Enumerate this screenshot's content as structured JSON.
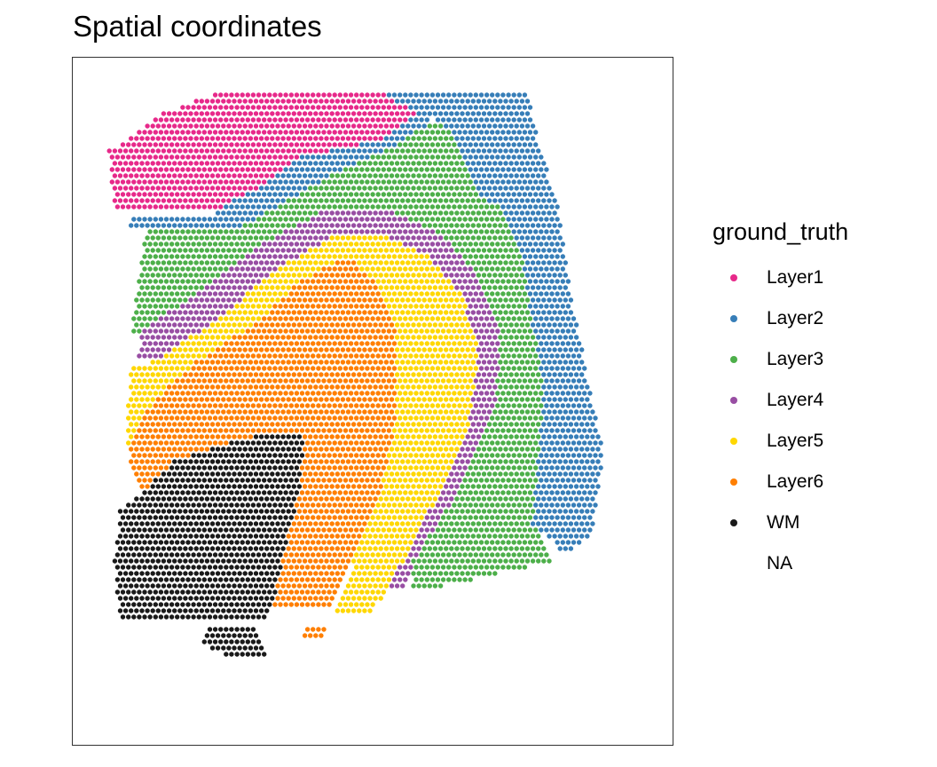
{
  "title": "Spatial coordinates",
  "legend": {
    "title": "ground_truth",
    "entries": [
      {
        "label": "Layer1",
        "color": "#E7298A"
      },
      {
        "label": "Layer2",
        "color": "#377EB8"
      },
      {
        "label": "Layer3",
        "color": "#4DAF4A"
      },
      {
        "label": "Layer4",
        "color": "#984EA3"
      },
      {
        "label": "Layer5",
        "color": "#FFD700"
      },
      {
        "label": "Layer6",
        "color": "#FF7F00"
      },
      {
        "label": "WM",
        "color": "#1A1A1A"
      },
      {
        "label": "NA",
        "color": ""
      }
    ]
  },
  "chart_data": {
    "type": "scatter",
    "title": "Spatial coordinates",
    "xlabel": "",
    "ylabel": "",
    "axes_visible": false,
    "grid": false,
    "legend_position": "right",
    "color_by": "ground_truth",
    "categories": [
      "Layer1",
      "Layer2",
      "Layer3",
      "Layer4",
      "Layer5",
      "Layer6",
      "WM",
      "NA"
    ],
    "note_on_points": "Spots lie on a hexagonal grid. Each region is listed as polygons in spot grid units (x = column index, y = row index, row 0 at top); every grid spot inside a polygon belongs to that category.",
    "regions": {
      "Layer1": [
        [
          [
            21,
            1
          ],
          [
            53,
            1
          ],
          [
            59,
            4
          ],
          [
            53,
            8
          ],
          [
            37,
            11
          ],
          [
            30,
            16
          ],
          [
            25,
            18
          ],
          [
            22,
            20
          ],
          [
            3,
            20
          ],
          [
            2,
            10
          ],
          [
            12,
            4
          ]
        ],
        [
          [
            59,
            1
          ],
          [
            70,
            5
          ],
          [
            75,
            13
          ],
          [
            74,
            18
          ],
          [
            70,
            17
          ],
          [
            66,
            8
          ],
          [
            62,
            5
          ]
        ],
        [
          [
            82,
            13
          ],
          [
            85,
            19
          ],
          [
            83,
            19
          ],
          [
            80,
            16
          ]
        ]
      ],
      "Layer2": [
        [
          [
            53,
            1
          ],
          [
            79,
            1
          ],
          [
            81,
            8
          ],
          [
            85,
            20
          ],
          [
            87,
            33
          ],
          [
            90,
            46
          ],
          [
            93,
            59
          ],
          [
            91,
            72
          ],
          [
            86,
            75
          ],
          [
            80,
            70
          ],
          [
            81,
            60
          ],
          [
            82,
            48
          ],
          [
            80,
            38
          ],
          [
            78,
            27
          ],
          [
            74,
            19
          ],
          [
            70,
            17
          ],
          [
            66,
            8
          ],
          [
            62,
            5
          ],
          [
            59,
            4
          ]
        ],
        [
          [
            59,
            4
          ],
          [
            53,
            8
          ],
          [
            37,
            11
          ],
          [
            30,
            16
          ],
          [
            25,
            18
          ],
          [
            22,
            20
          ],
          [
            6,
            21
          ],
          [
            6,
            22
          ],
          [
            25,
            23
          ],
          [
            35,
            18
          ],
          [
            45,
            13
          ],
          [
            55,
            9
          ],
          [
            63,
            6
          ]
        ]
      ],
      "Layer3": [
        [
          [
            62,
            5
          ],
          [
            66,
            8
          ],
          [
            70,
            17
          ],
          [
            74,
            19
          ],
          [
            78,
            27
          ],
          [
            80,
            38
          ],
          [
            82,
            48
          ],
          [
            81,
            60
          ],
          [
            80,
            70
          ],
          [
            84,
            76
          ],
          [
            69,
            79
          ],
          [
            58,
            81
          ],
          [
            58,
            76
          ],
          [
            66,
            65
          ],
          [
            73,
            52
          ],
          [
            74,
            40
          ],
          [
            70,
            30
          ],
          [
            64,
            24
          ],
          [
            55,
            20
          ],
          [
            41,
            20
          ],
          [
            30,
            25
          ],
          [
            18,
            33
          ],
          [
            8,
            39
          ],
          [
            7,
            40
          ],
          [
            6,
            39
          ],
          [
            9,
            22
          ],
          [
            25,
            23
          ],
          [
            35,
            18
          ],
          [
            45,
            13
          ],
          [
            55,
            9
          ]
        ]
      ],
      "Layer4": [
        [
          [
            41,
            20
          ],
          [
            55,
            20
          ],
          [
            64,
            24
          ],
          [
            70,
            30
          ],
          [
            74,
            40
          ],
          [
            73,
            52
          ],
          [
            66,
            65
          ],
          [
            58,
            76
          ],
          [
            56,
            81
          ],
          [
            53,
            81
          ],
          [
            61,
            68
          ],
          [
            68,
            55
          ],
          [
            70,
            42
          ],
          [
            67,
            33
          ],
          [
            61,
            27
          ],
          [
            54,
            24
          ],
          [
            43,
            24
          ],
          [
            33,
            29
          ],
          [
            22,
            37
          ],
          [
            10,
            44
          ],
          [
            7,
            44
          ],
          [
            8,
            39
          ],
          [
            18,
            33
          ],
          [
            30,
            25
          ]
        ]
      ],
      "Layer5": [
        [
          [
            43,
            24
          ],
          [
            54,
            24
          ],
          [
            61,
            27
          ],
          [
            67,
            33
          ],
          [
            70,
            42
          ],
          [
            68,
            55
          ],
          [
            61,
            68
          ],
          [
            53,
            81
          ],
          [
            50,
            85
          ],
          [
            43,
            85
          ],
          [
            47,
            76
          ],
          [
            52,
            65
          ],
          [
            55,
            52
          ],
          [
            55,
            40
          ],
          [
            52,
            32
          ],
          [
            46,
            27
          ],
          [
            37,
            31
          ],
          [
            30,
            37
          ],
          [
            18,
            44
          ],
          [
            14,
            47
          ],
          [
            8,
            53
          ],
          [
            6,
            58
          ],
          [
            5,
            57
          ],
          [
            6,
            45
          ],
          [
            10,
            44
          ],
          [
            22,
            37
          ],
          [
            33,
            29
          ]
        ]
      ],
      "Layer6": [
        [
          [
            46,
            27
          ],
          [
            52,
            32
          ],
          [
            55,
            40
          ],
          [
            55,
            52
          ],
          [
            52,
            65
          ],
          [
            47,
            76
          ],
          [
            43,
            84
          ],
          [
            32,
            84
          ],
          [
            34,
            75
          ],
          [
            37,
            65
          ],
          [
            38,
            56
          ],
          [
            34,
            55
          ],
          [
            24,
            57
          ],
          [
            14,
            60
          ],
          [
            8,
            65
          ],
          [
            6,
            60
          ],
          [
            6,
            58
          ],
          [
            8,
            53
          ],
          [
            14,
            47
          ],
          [
            18,
            44
          ],
          [
            30,
            37
          ],
          [
            37,
            31
          ]
        ],
        [
          [
            38,
            87
          ],
          [
            42,
            87
          ],
          [
            42,
            89
          ],
          [
            38,
            89
          ]
        ]
      ],
      "WM": [
        [
          [
            34,
            55
          ],
          [
            38,
            56
          ],
          [
            37,
            65
          ],
          [
            34,
            75
          ],
          [
            32,
            84
          ],
          [
            30,
            86
          ],
          [
            4,
            86
          ],
          [
            3,
            76
          ],
          [
            4,
            68
          ],
          [
            8,
            65
          ],
          [
            14,
            60
          ],
          [
            24,
            57
          ]
        ],
        [
          [
            20,
            87
          ],
          [
            29,
            87
          ],
          [
            31,
            92
          ],
          [
            25,
            92
          ],
          [
            19,
            89
          ]
        ]
      ]
    }
  }
}
